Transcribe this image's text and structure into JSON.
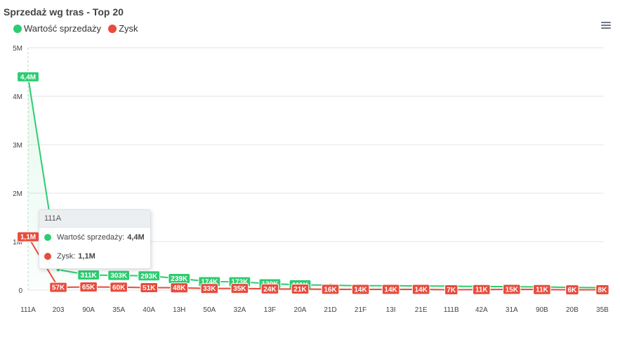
{
  "title": "Sprzedaż wg tras - Top 20",
  "legend": [
    {
      "label": "Wartość sprzedaży",
      "color": "#2ecc71"
    },
    {
      "label": "Zysk",
      "color": "#e74c3c"
    }
  ],
  "tooltip": {
    "category": "111A",
    "rows": [
      {
        "label": "Wartość sprzedaży:",
        "value": "4,4M",
        "color": "#2ecc71"
      },
      {
        "label": "Zysk:",
        "value": "1,1M",
        "color": "#e74c3c"
      }
    ]
  },
  "chart_data": {
    "type": "line",
    "title": "Sprzedaż wg tras - Top 20",
    "categories": [
      "111A",
      "203",
      "90A",
      "35A",
      "40A",
      "13H",
      "50A",
      "32A",
      "13F",
      "20A",
      "21D",
      "21F",
      "13I",
      "21E",
      "111B",
      "42A",
      "31A",
      "90B",
      "20B",
      "35B"
    ],
    "y_ticks": [
      "0",
      "1M",
      "2M",
      "3M",
      "4M",
      "5M"
    ],
    "ylim": [
      0,
      5000000
    ],
    "grid": true,
    "legend_position": "top-left",
    "series": [
      {
        "name": "Wartość sprzedaży",
        "color": "#2ecc71",
        "values": [
          4400000,
          420000,
          311000,
          303000,
          293000,
          239000,
          174000,
          173000,
          130000,
          111000,
          100000,
          90000,
          90000,
          85000,
          80000,
          75000,
          70000,
          65000,
          55000,
          50000
        ],
        "labels": [
          "4,4M",
          "",
          "311K",
          "303K",
          "293K",
          "239K",
          "174K",
          "173K",
          "130K",
          "111K",
          "",
          "",
          "",
          "",
          "",
          "",
          "",
          "",
          "",
          ""
        ]
      },
      {
        "name": "Zysk",
        "color": "#e74c3c",
        "values": [
          1100000,
          57000,
          65000,
          60000,
          51000,
          48000,
          33000,
          35000,
          24000,
          21000,
          16000,
          14000,
          14000,
          14000,
          7000,
          11000,
          15000,
          11000,
          6000,
          8000
        ],
        "labels": [
          "1,1M",
          "57K",
          "65K",
          "60K",
          "51K",
          "48K",
          "33K",
          "35K",
          "24K",
          "21K",
          "16K",
          "14K",
          "14K",
          "14K",
          "7K",
          "11K",
          "15K",
          "11K",
          "6K",
          "8K"
        ]
      }
    ]
  }
}
